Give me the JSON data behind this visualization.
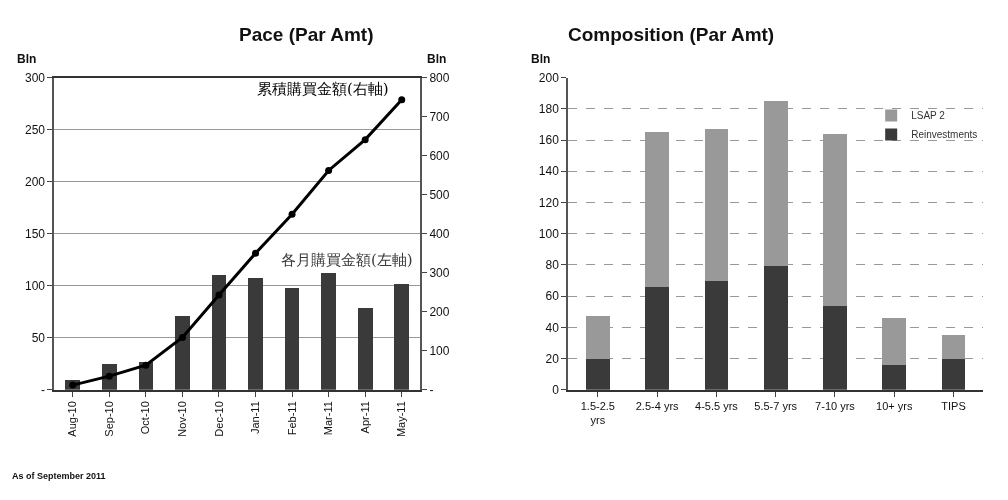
{
  "chart_data": [
    {
      "type": "bar",
      "title": "Pace (Par Amt)",
      "ylabel": "Bln",
      "y2label": "Bln",
      "categories": [
        "Aug-10",
        "Sep-10",
        "Oct-10",
        "Nov-10",
        "Dec-10",
        "Jan-11",
        "Feb-11",
        "Mar-11",
        "Apr-11",
        "May-11"
      ],
      "series": [
        {
          "name": "各月購買金額(左軸)",
          "type": "bar",
          "color": "#3a3a3a",
          "values": [
            9,
            25,
            27,
            71,
            110,
            107,
            98,
            112,
            79,
            102
          ]
        },
        {
          "name": "累積購買金額(右軸)",
          "type": "line",
          "axis": "y2",
          "color": "#000000",
          "marker": "circle",
          "line_style": "solid",
          "values": [
            12,
            35,
            63,
            134,
            243,
            350,
            450,
            562,
            641,
            743
          ]
        }
      ],
      "ylim": [
        0,
        300
      ],
      "yticks": [
        {
          "value": 0,
          "label": "-"
        },
        50,
        100,
        150,
        200,
        250,
        300
      ],
      "y2lim": [
        0,
        800
      ],
      "y2ticks": [
        {
          "value": 0,
          "label": "-"
        },
        100,
        200,
        300,
        400,
        500,
        600,
        700,
        800
      ],
      "grid": "y",
      "legend": false,
      "annotations": [
        "As of September 2011"
      ]
    },
    {
      "type": "bar",
      "title": "Composition (Par Amt)",
      "ylabel": "Bln",
      "stacked": true,
      "categories": [
        "1.5-2.5 yrs",
        "2.5-4 yrs",
        "4-5.5 yrs",
        "5.5-7 yrs",
        "7-10 yrs",
        "10+ yrs",
        "TIPS"
      ],
      "series": [
        {
          "name": "Reinvestments",
          "color": "#3a3a3a",
          "values": [
            20,
            66,
            70,
            79,
            54,
            16,
            20
          ]
        },
        {
          "name": "LSAP 2",
          "color": "#999999",
          "values": [
            27,
            99,
            97,
            106,
            110,
            30,
            15
          ]
        }
      ],
      "ylim": [
        0,
        200
      ],
      "yticks": [
        0,
        20,
        40,
        60,
        80,
        100,
        120,
        140,
        160,
        180,
        200
      ],
      "grid": "y",
      "legend": "top right"
    }
  ]
}
